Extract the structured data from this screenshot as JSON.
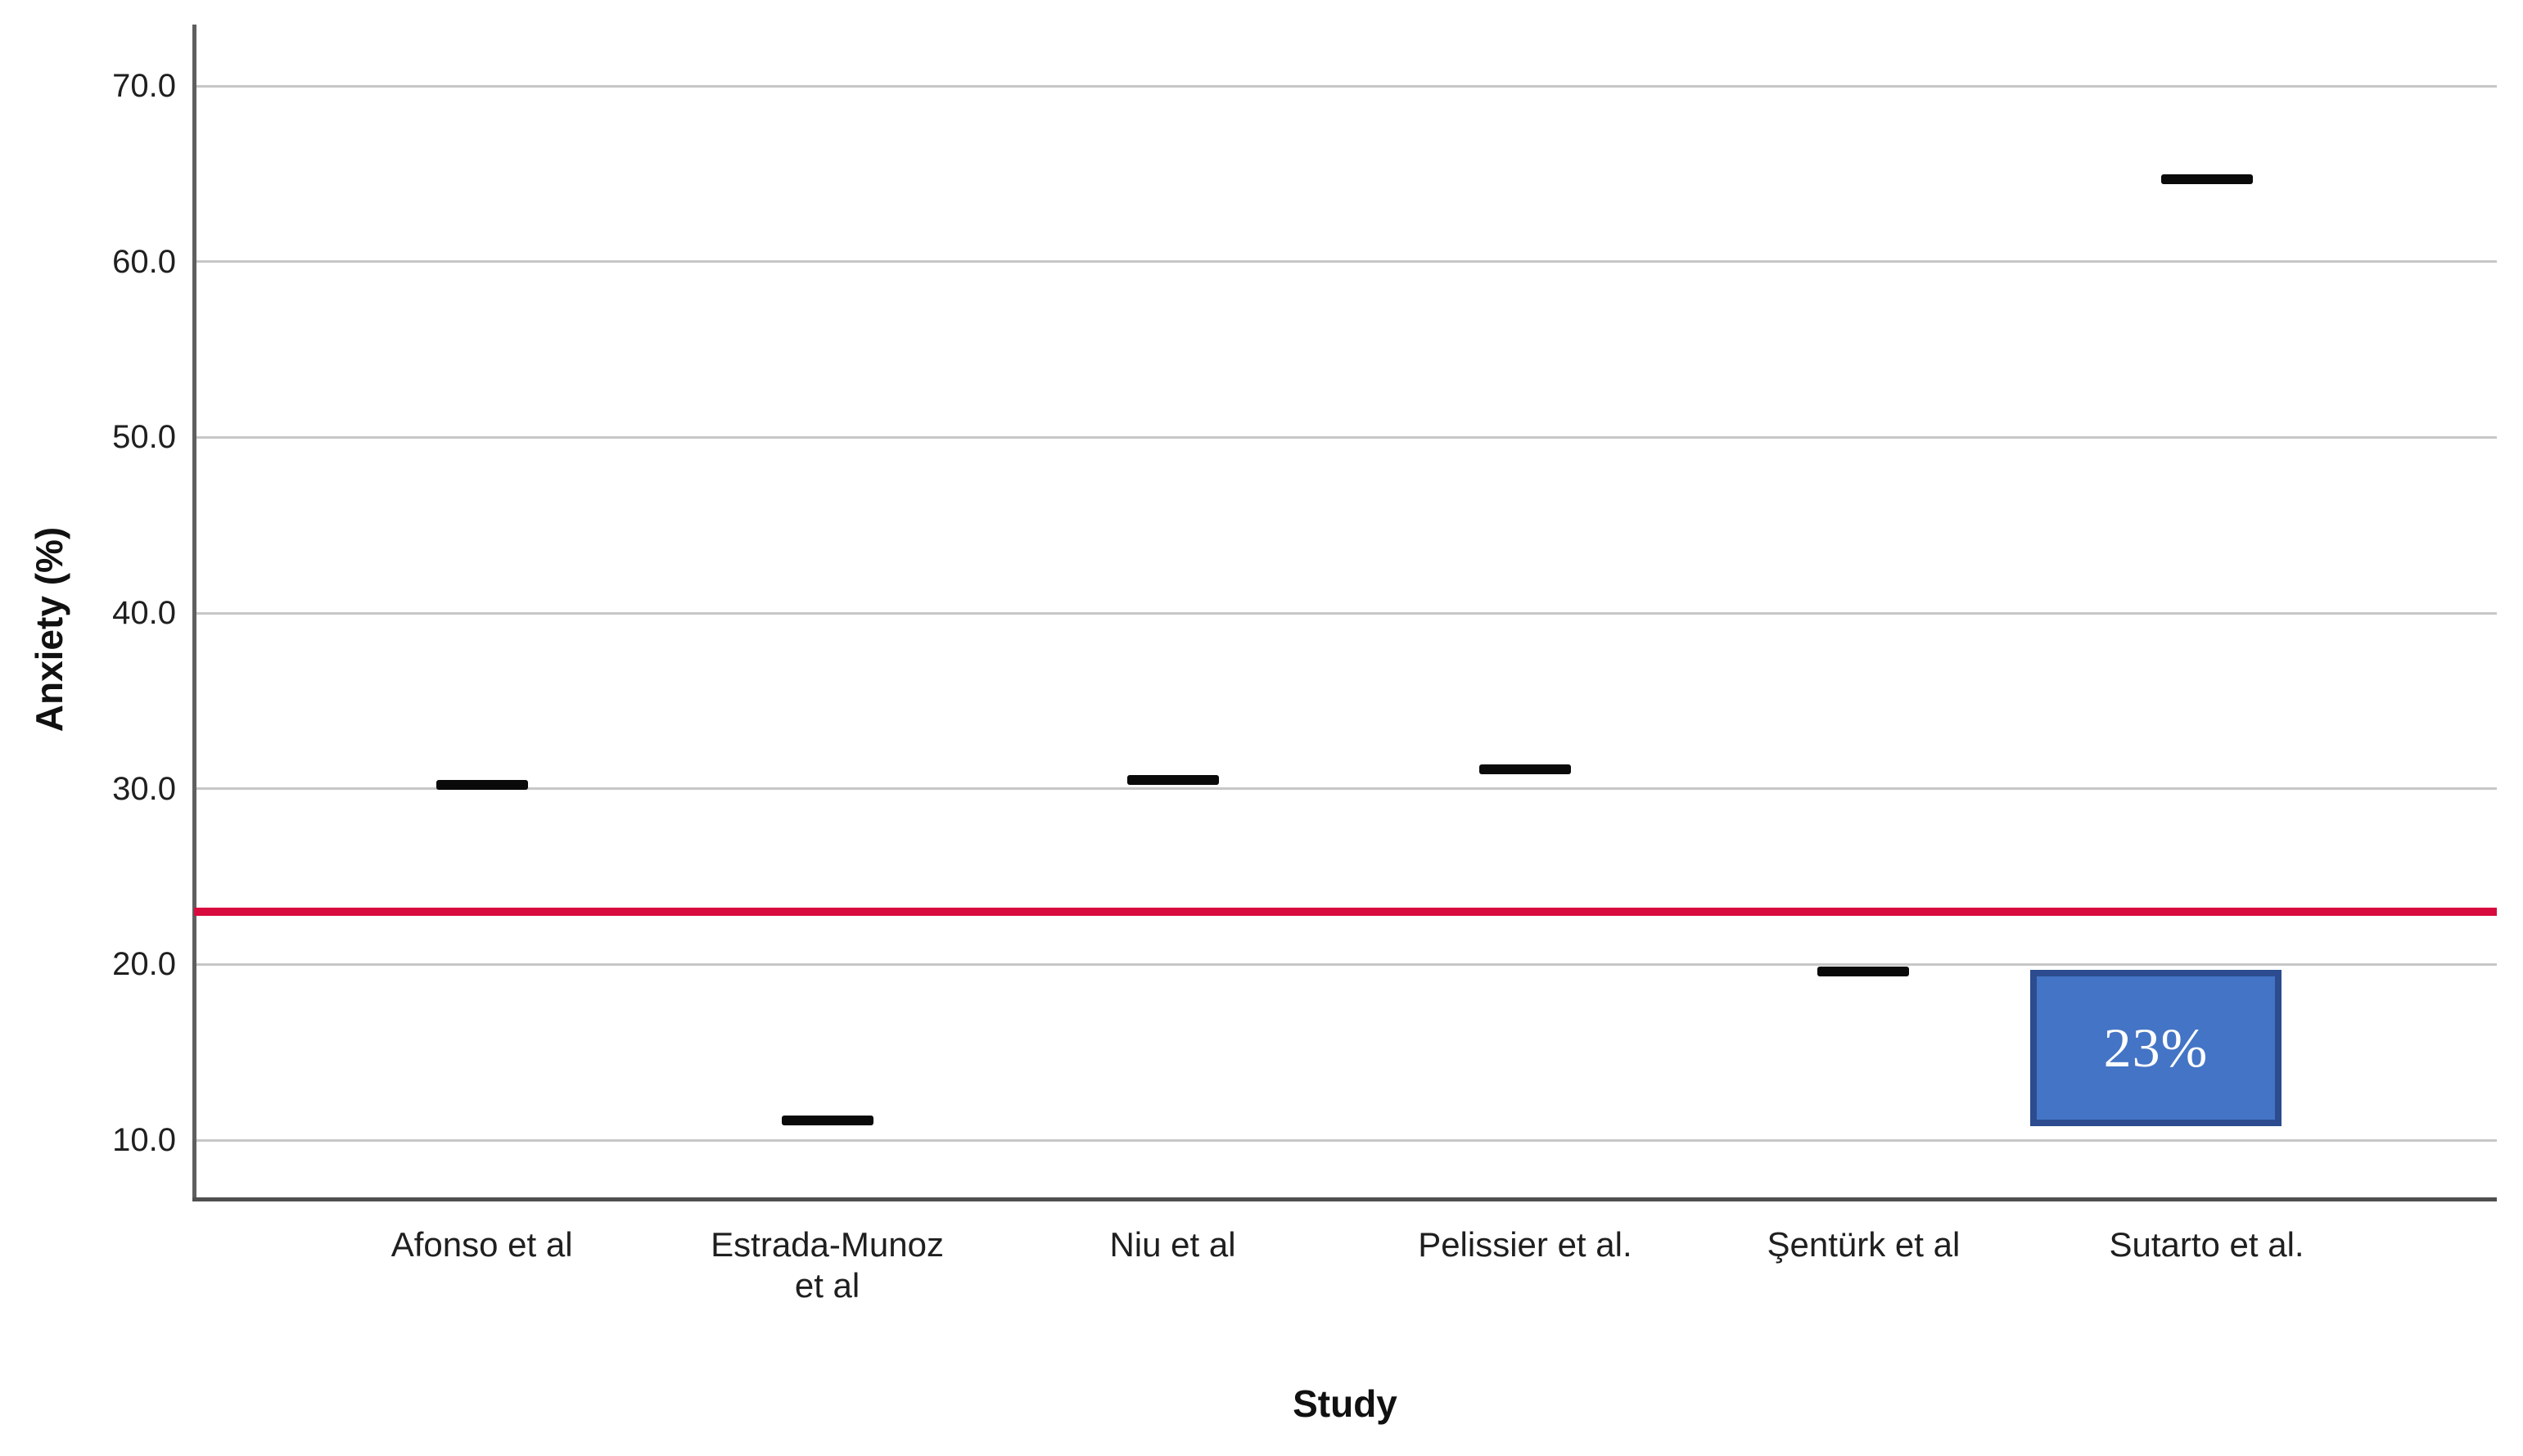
{
  "chart_data": {
    "type": "scatter",
    "marker_style": "horizontal-dash",
    "title": "",
    "xlabel": "Study",
    "ylabel": "Anxiety (%)",
    "categories": [
      "Afonso et al",
      "Estrada-Munoz\net al",
      "Niu et al",
      "Pelissier et al.",
      "Şentürk et al",
      "Sutarto et al."
    ],
    "values": [
      30.2,
      11.1,
      30.5,
      31.1,
      19.6,
      64.7
    ],
    "yticks": [
      70,
      60,
      50,
      40,
      30,
      20,
      10
    ],
    "ytick_labels": [
      "70.0",
      "60.0",
      "50.0",
      "40.0",
      "30.0",
      "20.0",
      "10.0"
    ],
    "ylim": [
      6.7,
      73.5
    ],
    "grid": "horizontal",
    "legend": "none",
    "reference_line": {
      "value": 23.0,
      "color": "#d80b3e"
    },
    "annotation": {
      "label": "23%",
      "fill_color": "#4474c5",
      "border_color": "#2c4c8f",
      "text_color": "#fdfdfd",
      "y_top_value": 19.7,
      "y_bottom_value": 10.8,
      "near_category": "Sutarto et al."
    },
    "marker_color": "#0a0a0a",
    "gridline_color": "#c7c7c7",
    "axis_color": "#5f5f5f"
  }
}
